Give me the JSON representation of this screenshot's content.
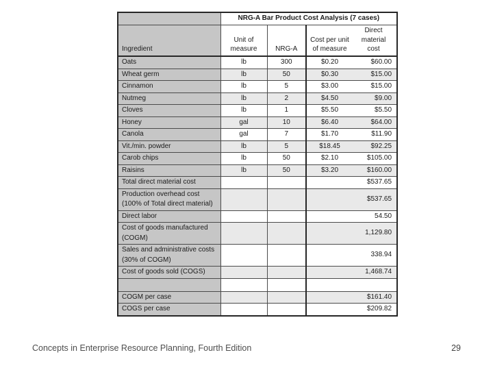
{
  "table": {
    "title": "NRG-A Bar Product Cost Analysis (7 cases)",
    "columns": [
      "Ingredient",
      "Unit of\nmeasure",
      "NRG-A",
      "Cost per unit\nof measure",
      "Direct\nmaterial\ncost"
    ],
    "rows": [
      [
        "Oats",
        "lb",
        "300",
        "$0.20",
        "$60.00"
      ],
      [
        "Wheat germ",
        "lb",
        "50",
        "$0.30",
        "$15.00"
      ],
      [
        "Cinnamon",
        "lb",
        "5",
        "$3.00",
        "$15.00"
      ],
      [
        "Nutmeg",
        "lb",
        "2",
        "$4.50",
        "$9.00"
      ],
      [
        "Cloves",
        "lb",
        "1",
        "$5.50",
        "$5.50"
      ],
      [
        "Honey",
        "gal",
        "10",
        "$6.40",
        "$64.00"
      ],
      [
        "Canola",
        "gal",
        "7",
        "$1.70",
        "$11.90"
      ],
      [
        "Vit./min. powder",
        "lb",
        "5",
        "$18.45",
        "$92.25"
      ],
      [
        "Carob chips",
        "lb",
        "50",
        "$2.10",
        "$105.00"
      ],
      [
        "Raisins",
        "lb",
        "50",
        "$3.20",
        "$160.00"
      ],
      [
        "Total direct material cost",
        "",
        "",
        "",
        "$537.65"
      ],
      [
        "Production overhead cost (100% of Total direct material)",
        "",
        "",
        "",
        "$537.65"
      ],
      [
        "Direct labor",
        "",
        "",
        "",
        "54.50"
      ],
      [
        "Cost of goods manufactured (COGM)",
        "",
        "",
        "",
        "1,129.80"
      ],
      [
        "Sales and administrative costs (30% of COGM)",
        "",
        "",
        "",
        "338.94"
      ],
      [
        "Cost of goods sold (COGS)",
        "",
        "",
        "",
        "1,468.74"
      ],
      [
        "",
        "",
        "",
        "",
        ""
      ],
      [
        "COGM per case",
        "",
        "",
        "",
        "$161.40"
      ],
      [
        "COGS per case",
        "",
        "",
        "",
        "$209.82"
      ]
    ],
    "colors": {
      "ingredient_column_bg": "#c6c6c6",
      "alt_row_bg": "#e9e9e9",
      "border": "#262626"
    }
  },
  "footer": {
    "left": "Concepts in Enterprise Resource Planning, Fourth Edition",
    "page": "29"
  }
}
